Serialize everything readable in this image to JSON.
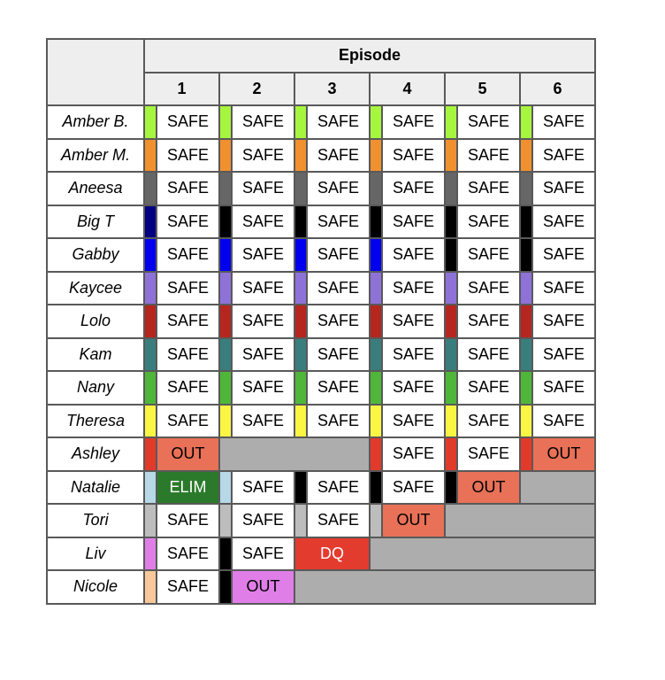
{
  "header": {
    "group_label": "Episode",
    "episodes": [
      "1",
      "2",
      "3",
      "4",
      "5",
      "6"
    ]
  },
  "legend_colors": {
    "SAFE": "#ffffff",
    "OUT": "#e87157",
    "ELIM": "#2b7a2b",
    "DQ": "#e43b2f",
    "OUT_alt": "#e07ee8",
    "eliminated": "#adadad"
  },
  "rows": [
    {
      "name": "Amber B.",
      "cells": [
        {
          "strip": "#a6f53f",
          "value": "SAFE"
        },
        {
          "strip": "#a6f53f",
          "value": "SAFE"
        },
        {
          "strip": "#a6f53f",
          "value": "SAFE"
        },
        {
          "strip": "#a6f53f",
          "value": "SAFE"
        },
        {
          "strip": "#a6f53f",
          "value": "SAFE"
        },
        {
          "strip": "#a6f53f",
          "value": "SAFE"
        }
      ]
    },
    {
      "name": "Amber M.",
      "cells": [
        {
          "strip": "#f0902f",
          "value": "SAFE"
        },
        {
          "strip": "#f0902f",
          "value": "SAFE"
        },
        {
          "strip": "#f0902f",
          "value": "SAFE"
        },
        {
          "strip": "#f0902f",
          "value": "SAFE"
        },
        {
          "strip": "#f0902f",
          "value": "SAFE"
        },
        {
          "strip": "#f0902f",
          "value": "SAFE"
        }
      ]
    },
    {
      "name": "Aneesa",
      "cells": [
        {
          "strip": "#666666",
          "value": "SAFE"
        },
        {
          "strip": "#666666",
          "value": "SAFE"
        },
        {
          "strip": "#666666",
          "value": "SAFE"
        },
        {
          "strip": "#666666",
          "value": "SAFE"
        },
        {
          "strip": "#666666",
          "value": "SAFE"
        },
        {
          "strip": "#666666",
          "value": "SAFE"
        }
      ]
    },
    {
      "name": "Big T",
      "cells": [
        {
          "strip": "#000080",
          "value": "SAFE"
        },
        {
          "strip": "#000000",
          "value": "SAFE"
        },
        {
          "strip": "#000000",
          "value": "SAFE"
        },
        {
          "strip": "#000000",
          "value": "SAFE"
        },
        {
          "strip": "#000000",
          "value": "SAFE"
        },
        {
          "strip": "#000000",
          "value": "SAFE"
        }
      ]
    },
    {
      "name": "Gabby",
      "cells": [
        {
          "strip": "#0000ee",
          "value": "SAFE"
        },
        {
          "strip": "#0000ee",
          "value": "SAFE"
        },
        {
          "strip": "#0000ee",
          "value": "SAFE"
        },
        {
          "strip": "#0000ee",
          "value": "SAFE"
        },
        {
          "strip": "#000000",
          "value": "SAFE"
        },
        {
          "strip": "#000000",
          "value": "SAFE"
        }
      ]
    },
    {
      "name": "Kaycee",
      "cells": [
        {
          "strip": "#8e72d8",
          "value": "SAFE"
        },
        {
          "strip": "#8e72d8",
          "value": "SAFE"
        },
        {
          "strip": "#8e72d8",
          "value": "SAFE"
        },
        {
          "strip": "#8e72d8",
          "value": "SAFE"
        },
        {
          "strip": "#8e72d8",
          "value": "SAFE"
        },
        {
          "strip": "#8e72d8",
          "value": "SAFE"
        }
      ]
    },
    {
      "name": "Lolo",
      "cells": [
        {
          "strip": "#b5261f",
          "value": "SAFE"
        },
        {
          "strip": "#b5261f",
          "value": "SAFE"
        },
        {
          "strip": "#b5261f",
          "value": "SAFE"
        },
        {
          "strip": "#b5261f",
          "value": "SAFE"
        },
        {
          "strip": "#b5261f",
          "value": "SAFE"
        },
        {
          "strip": "#b5261f",
          "value": "SAFE"
        }
      ]
    },
    {
      "name": "Kam",
      "cells": [
        {
          "strip": "#3a7d7d",
          "value": "SAFE"
        },
        {
          "strip": "#3a7d7d",
          "value": "SAFE"
        },
        {
          "strip": "#3a7d7d",
          "value": "SAFE"
        },
        {
          "strip": "#3a7d7d",
          "value": "SAFE"
        },
        {
          "strip": "#3a7d7d",
          "value": "SAFE"
        },
        {
          "strip": "#3a7d7d",
          "value": "SAFE"
        }
      ]
    },
    {
      "name": "Nany",
      "cells": [
        {
          "strip": "#4fb63a",
          "value": "SAFE"
        },
        {
          "strip": "#4fb63a",
          "value": "SAFE"
        },
        {
          "strip": "#4fb63a",
          "value": "SAFE"
        },
        {
          "strip": "#4fb63a",
          "value": "SAFE"
        },
        {
          "strip": "#4fb63a",
          "value": "SAFE"
        },
        {
          "strip": "#4fb63a",
          "value": "SAFE"
        }
      ]
    },
    {
      "name": "Theresa",
      "cells": [
        {
          "strip": "#fbf544",
          "value": "SAFE"
        },
        {
          "strip": "#fbf544",
          "value": "SAFE"
        },
        {
          "strip": "#fbf544",
          "value": "SAFE"
        },
        {
          "strip": "#fbf544",
          "value": "SAFE"
        },
        {
          "strip": "#fbf544",
          "value": "SAFE"
        },
        {
          "strip": "#fbf544",
          "value": "SAFE"
        }
      ]
    },
    {
      "name": "Ashley",
      "cells": [
        {
          "strip": "#e23a2a",
          "value": "OUT",
          "style": "out"
        },
        {
          "grey": true,
          "span": 4
        },
        {
          "strip": "#e23a2a",
          "value": "SAFE"
        },
        {
          "strip": "#e23a2a",
          "value": "SAFE"
        },
        {
          "strip": "#e23a2a",
          "value": "OUT",
          "style": "out"
        }
      ]
    },
    {
      "name": "Natalie",
      "cells": [
        {
          "strip": "#b7d8e6",
          "value": "ELIM",
          "style": "elim"
        },
        {
          "strip": "#b7d8e6",
          "value": "SAFE"
        },
        {
          "strip": "#000000",
          "value": "SAFE"
        },
        {
          "strip": "#000000",
          "value": "SAFE"
        },
        {
          "strip": "#000000",
          "value": "OUT",
          "style": "out"
        },
        {
          "grey": true,
          "span": 2
        }
      ]
    },
    {
      "name": "Tori",
      "cells": [
        {
          "strip": "#bdbdbd",
          "value": "SAFE"
        },
        {
          "strip": "#bdbdbd",
          "value": "SAFE"
        },
        {
          "strip": "#bdbdbd",
          "value": "SAFE"
        },
        {
          "strip": "#bdbdbd",
          "value": "OUT",
          "style": "out"
        },
        {
          "grey": true,
          "span": 4
        }
      ]
    },
    {
      "name": "Liv",
      "cells": [
        {
          "strip": "#e07ee8",
          "value": "SAFE"
        },
        {
          "strip": "#000000",
          "value": "SAFE"
        },
        {
          "nostrip": true,
          "value": "DQ",
          "style": "dq"
        },
        {
          "grey": true,
          "span": 6
        }
      ]
    },
    {
      "name": "Nicole",
      "cells": [
        {
          "strip": "#f8c89a",
          "value": "SAFE"
        },
        {
          "strip": "#000000",
          "value": "OUT",
          "style": "outp"
        },
        {
          "grey": true,
          "span": 8
        }
      ]
    }
  ]
}
